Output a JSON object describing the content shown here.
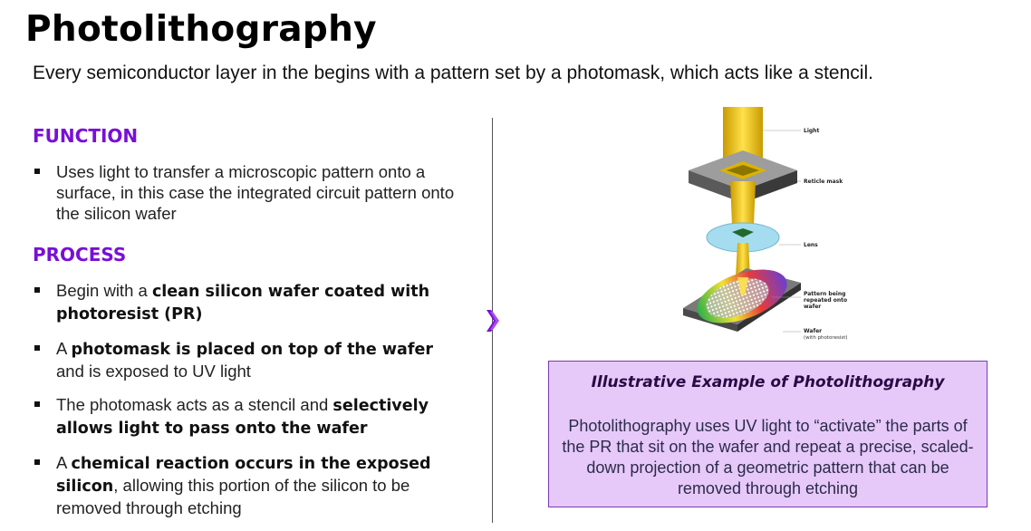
{
  "title": "Photolithography",
  "subtitle": "Every semiconductor layer in the begins with a pattern set by a photomask, which acts like a stencil.",
  "function": {
    "heading": "FUNCTION",
    "bullets": [
      "Uses light to transfer a microscopic pattern onto a surface, in this case the integrated circuit pattern onto the silicon wafer"
    ]
  },
  "process": {
    "heading": "PROCESS",
    "bullets": [
      {
        "pre": "Begin with a ",
        "bold": "clean silicon wafer coated with photoresist (PR)",
        "post": ""
      },
      {
        "pre": "A ",
        "bold": "photomask is placed on top of the wafer",
        "post": " and is exposed to UV light"
      },
      {
        "pre": "The photomask acts as a stencil and ",
        "bold": "selectively allows light to pass onto the wafer",
        "post": ""
      },
      {
        "pre": "A ",
        "bold": "chemical reaction occurs in the exposed silicon",
        "post": ", allowing this portion of the silicon to be removed through etching"
      }
    ]
  },
  "diagram": {
    "labels": {
      "light": "Light",
      "reticle": "Reticle mask",
      "lens": "Lens",
      "pattern_1": "Pattern being",
      "pattern_2": "repeated onto",
      "pattern_3": "wafer",
      "wafer": "Wafer",
      "wafer_sub": "(with photoresist)"
    }
  },
  "callout": {
    "title": "Illustrative Example of Photolithography",
    "body": "Photolithography uses UV light to “activate” the parts of the PR that sit on the wafer and repeat a precise, scaled-down projection of a geometric pattern that can be removed through etching"
  },
  "colors": {
    "accent_purple": "#7a0fd6",
    "callout_fill": "#e7c9f9",
    "light_beam": "#f2c200"
  }
}
